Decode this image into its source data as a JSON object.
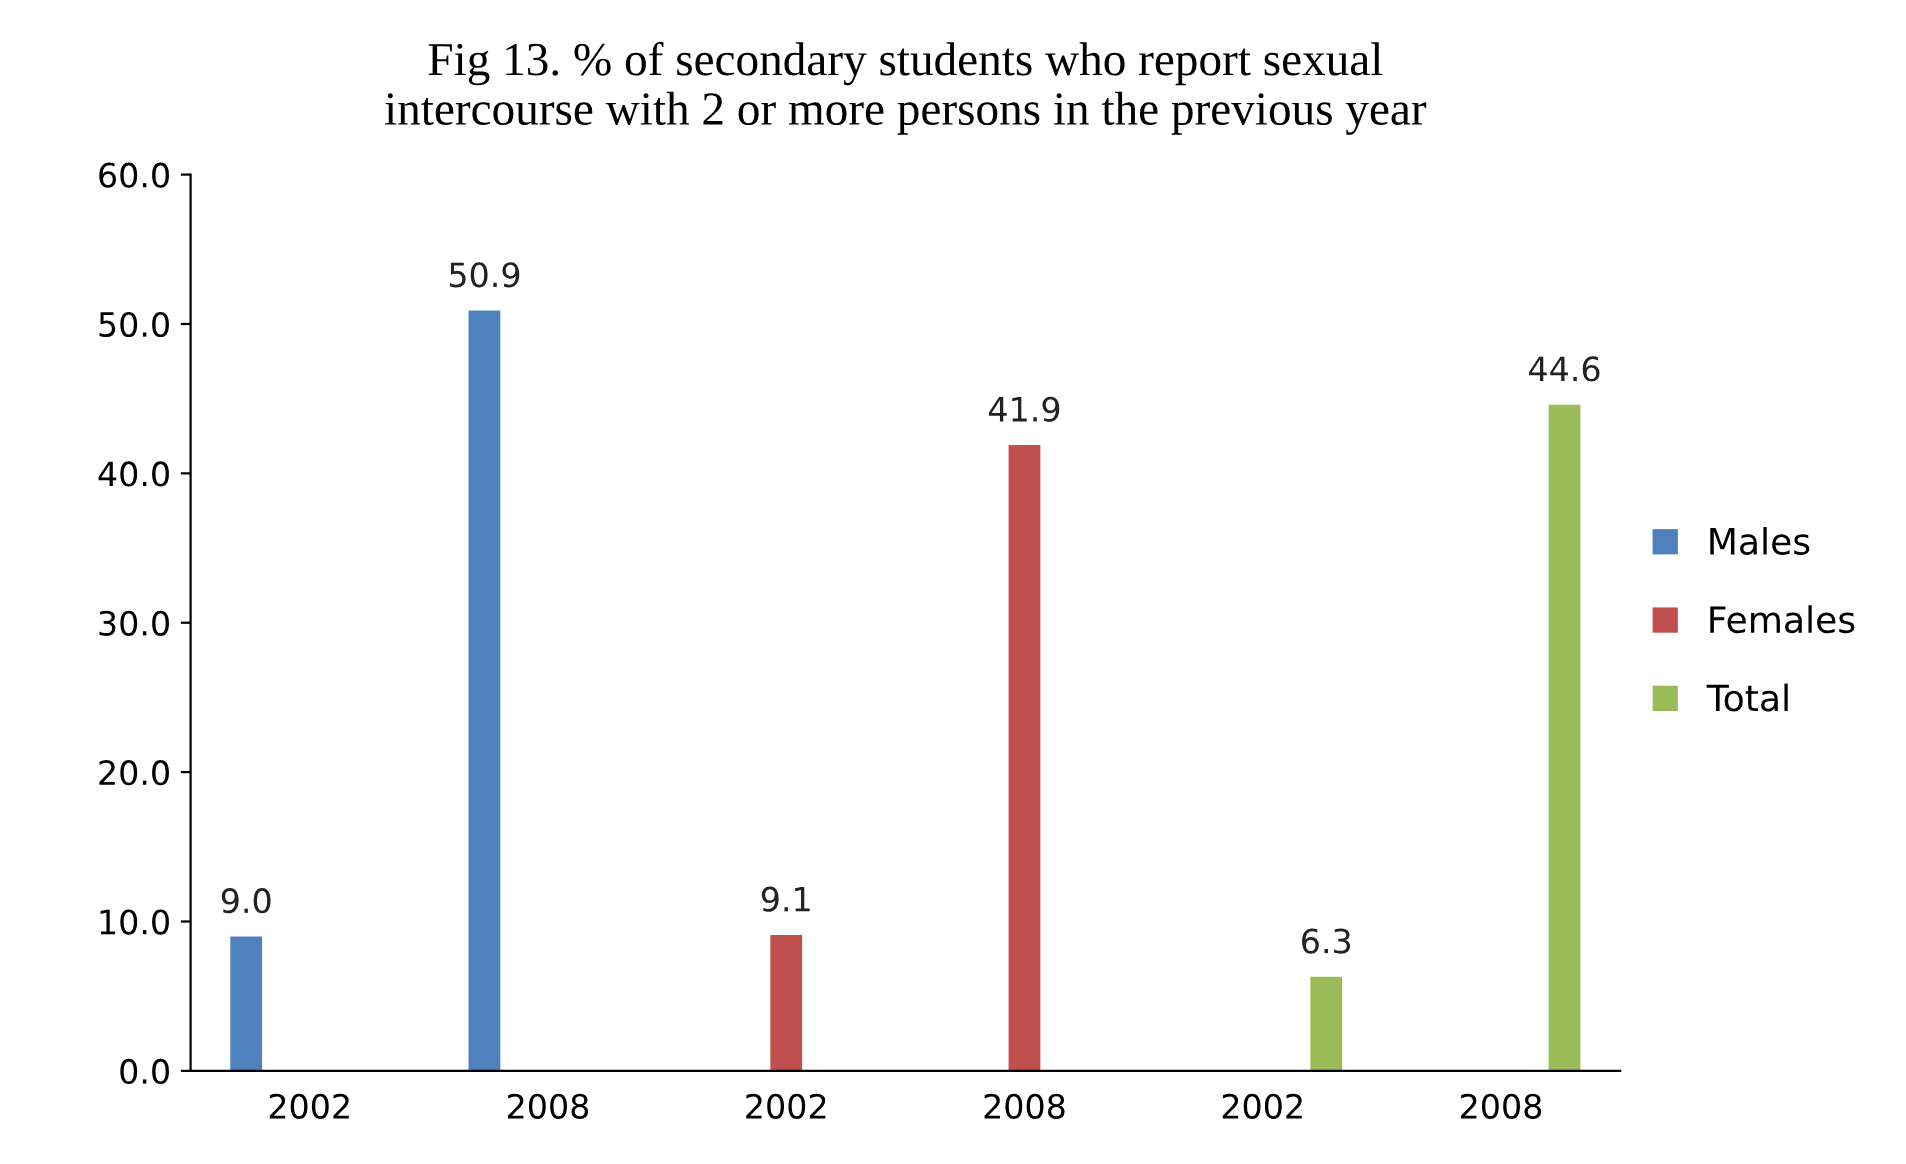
{
  "chart_data": {
    "type": "bar",
    "title": "Fig 13. % of secondary students who report sexual\nintercourse with 2 or more persons in the previous year",
    "categories": [
      "2002",
      "2008",
      "2002",
      "2008",
      "2002",
      "2008"
    ],
    "series": [
      {
        "name": "Males",
        "color": "#4f81bd",
        "values": [
          9.0,
          50.9,
          null,
          null,
          null,
          null
        ],
        "value_labels": [
          "9.0",
          "50.9",
          null,
          null,
          null,
          null
        ]
      },
      {
        "name": "Females",
        "color": "#c0504d",
        "values": [
          null,
          null,
          9.1,
          41.9,
          null,
          null
        ],
        "value_labels": [
          null,
          null,
          "9.1",
          "41.9",
          null,
          null
        ]
      },
      {
        "name": "Total",
        "color": "#9bbb59",
        "values": [
          null,
          null,
          null,
          null,
          6.3,
          44.6
        ],
        "value_labels": [
          null,
          null,
          null,
          null,
          "6.3",
          "44.6"
        ]
      }
    ],
    "ylim": [
      0,
      60
    ],
    "yticks": [
      {
        "value": 0,
        "label": "0.0"
      },
      {
        "value": 10,
        "label": "10.0"
      },
      {
        "value": 20,
        "label": "20.0"
      },
      {
        "value": 30,
        "label": "30.0"
      },
      {
        "value": 40,
        "label": "40.0"
      },
      {
        "value": 50,
        "label": "50.0"
      },
      {
        "value": 60,
        "label": "60.0"
      }
    ],
    "grid": false,
    "legend": "right"
  }
}
